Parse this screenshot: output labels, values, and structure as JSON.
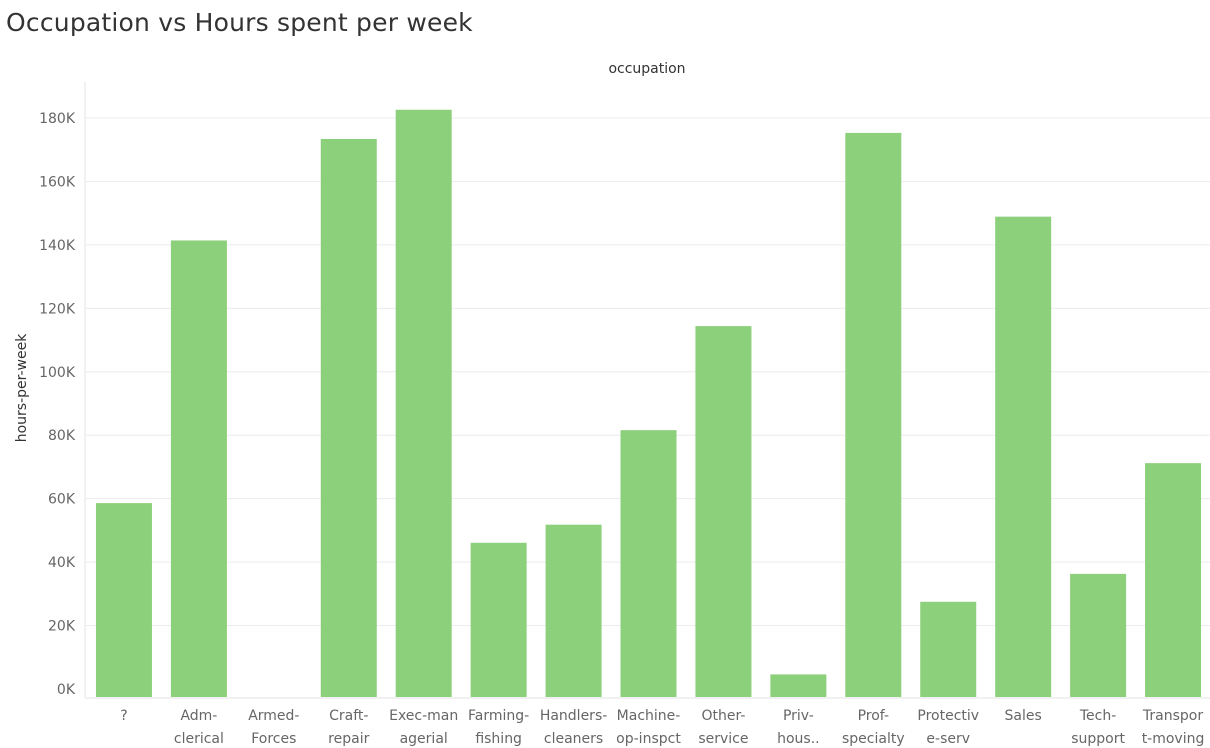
{
  "title": "Occupation vs Hours spent per week",
  "colors": {
    "bar": "#8dd07c",
    "grid": "#ececec",
    "axis": "#e3e3e3"
  },
  "chart_data": {
    "type": "bar",
    "title": "Occupation vs Hours spent per week",
    "xlabel": "occupation",
    "ylabel": "hours-per-week",
    "ylim": [
      0,
      190000
    ],
    "yticks": [
      {
        "value": 0,
        "label": "0K"
      },
      {
        "value": 20000,
        "label": "20K"
      },
      {
        "value": 40000,
        "label": "40K"
      },
      {
        "value": 60000,
        "label": "60K"
      },
      {
        "value": 80000,
        "label": "80K"
      },
      {
        "value": 100000,
        "label": "100K"
      },
      {
        "value": 120000,
        "label": "120K"
      },
      {
        "value": 140000,
        "label": "140K"
      },
      {
        "value": 160000,
        "label": "160K"
      },
      {
        "value": 180000,
        "label": "180K"
      }
    ],
    "grid": true,
    "categories": [
      [
        "?"
      ],
      [
        "Adm-",
        "clerical"
      ],
      [
        "Armed-",
        "Forces"
      ],
      [
        "Craft-",
        "repair"
      ],
      [
        "Exec-man",
        "agerial"
      ],
      [
        "Farming-",
        "fishing"
      ],
      [
        "Handlers-",
        "cleaners"
      ],
      [
        "Machine-",
        "op-inspct"
      ],
      [
        "Other-",
        "service"
      ],
      [
        "Priv-",
        "hous.."
      ],
      [
        "Prof-",
        "specialty"
      ],
      [
        "Protectiv",
        "e-serv"
      ],
      [
        "Sales"
      ],
      [
        "Tech-",
        "support"
      ],
      [
        "Transpor",
        "t-moving"
      ]
    ],
    "values": [
      58600,
      141400,
      0,
      173400,
      182600,
      46100,
      51800,
      81600,
      114400,
      4600,
      175300,
      27500,
      148900,
      36300,
      71200
    ]
  }
}
